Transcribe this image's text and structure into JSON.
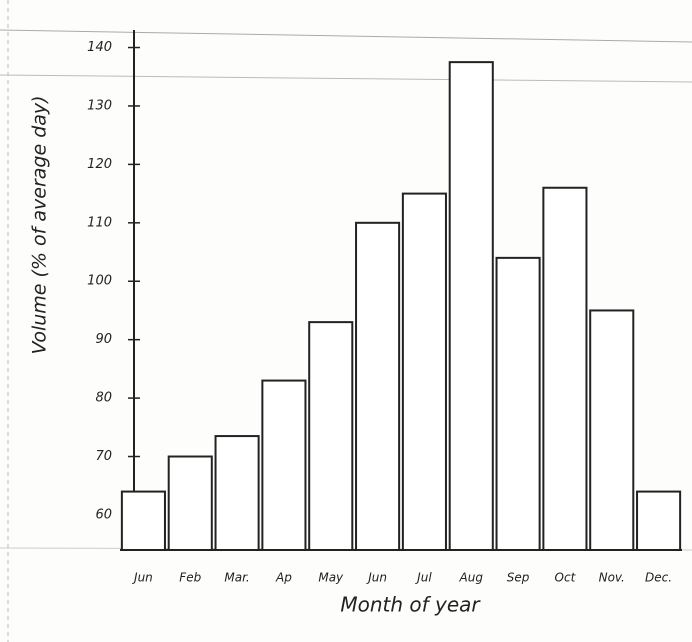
{
  "chart_data": {
    "type": "bar",
    "x_label": "Month of year",
    "y_label": "Volume (% of average day)",
    "categories": [
      "Jun",
      "Feb",
      "Mar.",
      "Ap",
      "May",
      "Jun",
      "Jul",
      "Aug",
      "Sep",
      "Oct",
      "Nov.",
      "Dec."
    ],
    "values": [
      64,
      70,
      73.5,
      83,
      93,
      110,
      115,
      137.5,
      104,
      116,
      95,
      64
    ],
    "color": "#ffffff",
    "ylim": [
      54,
      143
    ],
    "yticks": [
      60,
      70,
      80,
      90,
      100,
      110,
      120,
      130,
      140
    ],
    "grid": false
  }
}
